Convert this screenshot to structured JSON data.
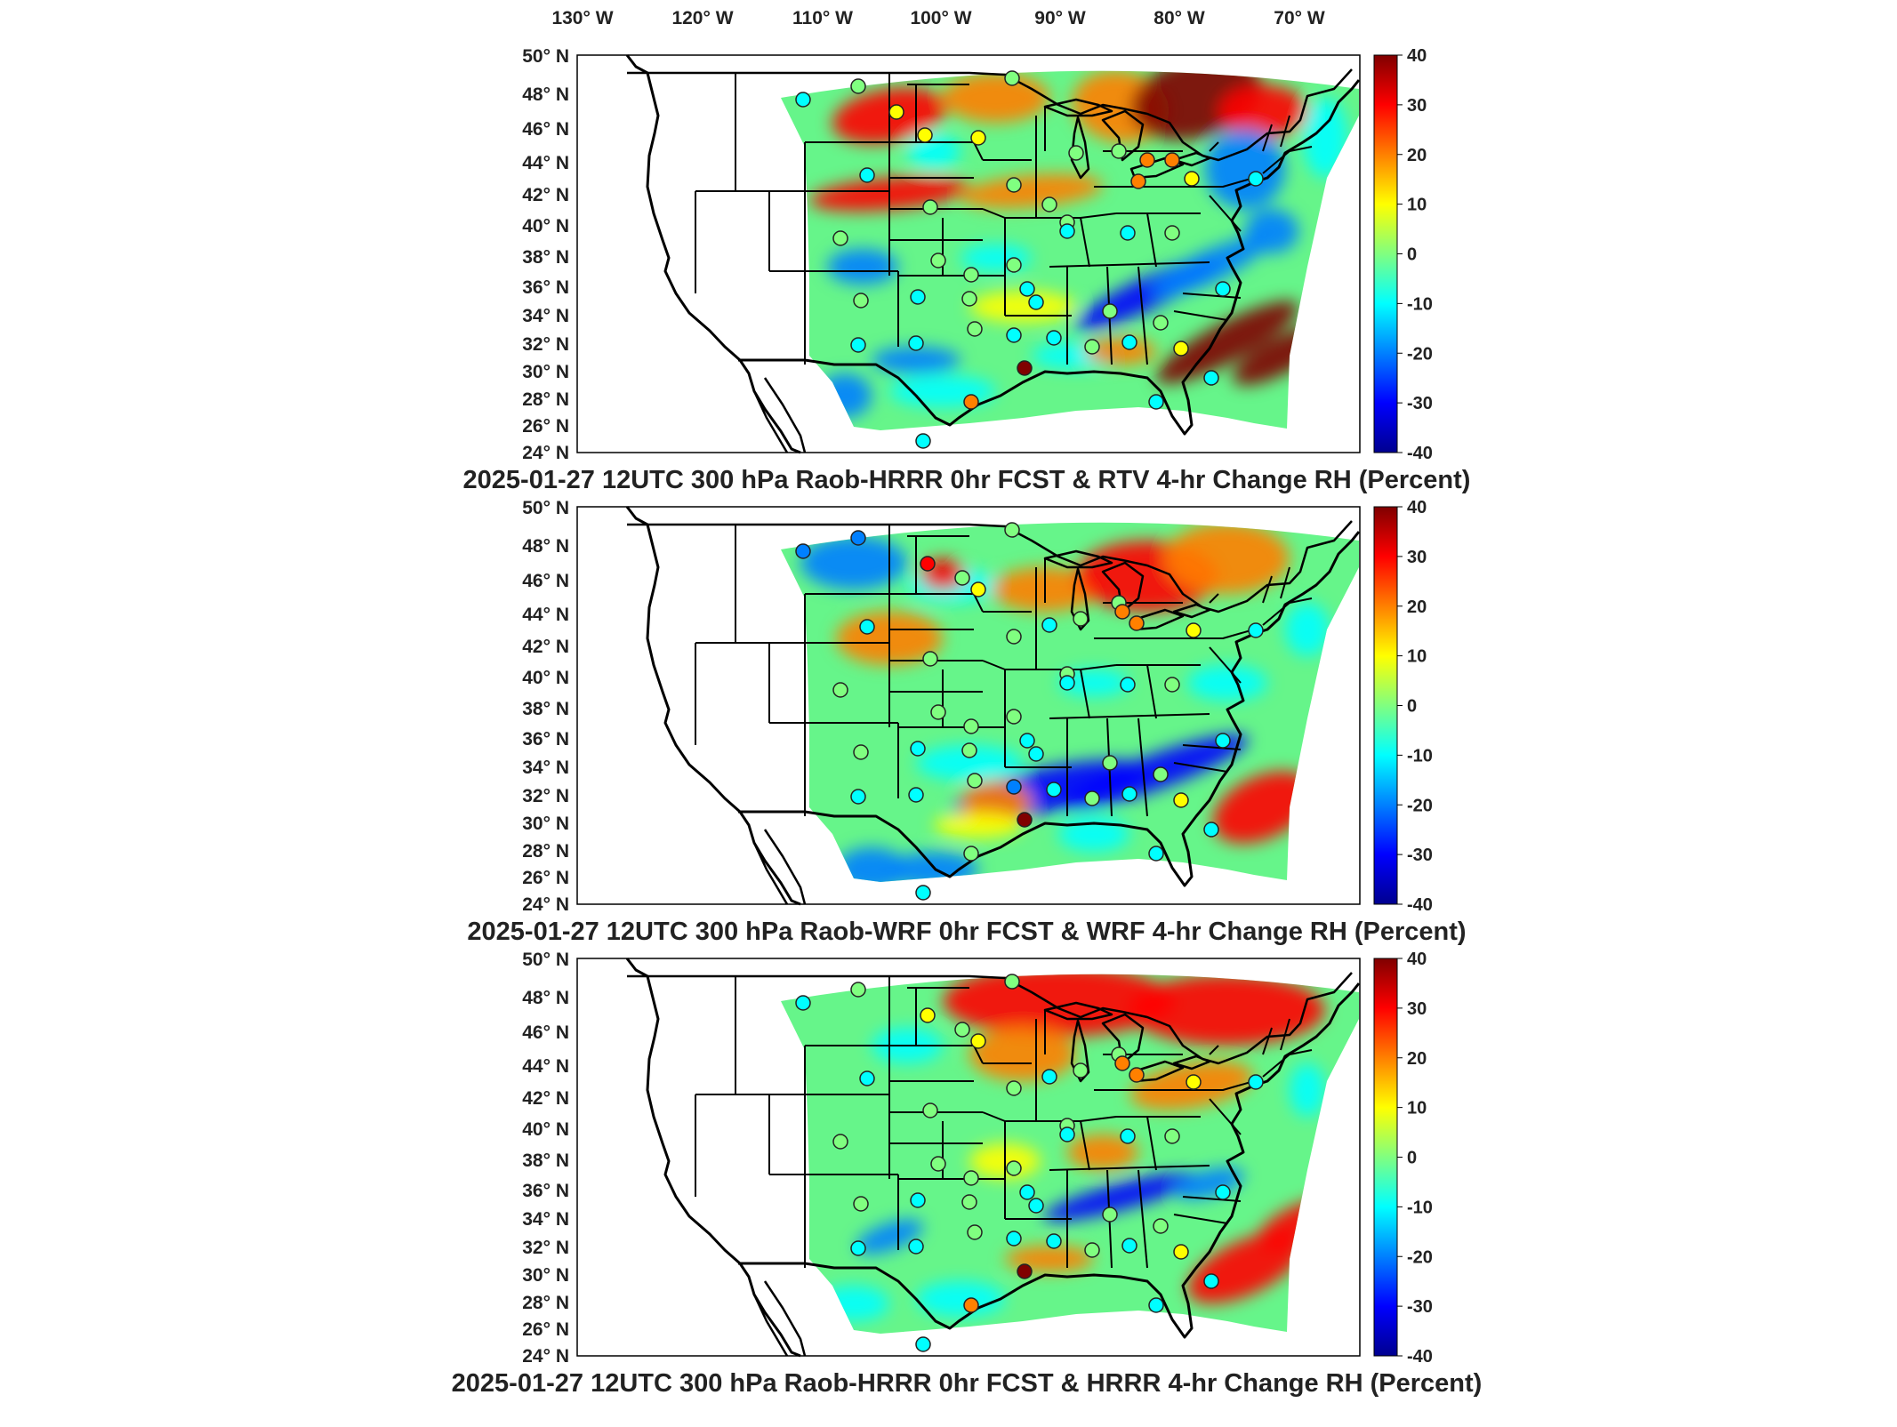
{
  "figure": {
    "longitude_labels": [
      "130° W",
      "120° W",
      "110° W",
      "100° W",
      "90° W",
      "80° W",
      "70° W"
    ],
    "latitude_labels": [
      "50° N",
      "48° N",
      "46° N",
      "44° N",
      "42° N",
      "40° N",
      "38° N",
      "36° N",
      "34° N",
      "32° N",
      "30° N",
      "28° N",
      "26° N",
      "24° N"
    ],
    "colorbar": {
      "ticks": [
        "40",
        "30",
        "20",
        "10",
        "0",
        "-10",
        "-20",
        "-30",
        "-40"
      ],
      "range": [
        -40,
        40
      ],
      "colors": [
        "#00008f",
        "#0000ff",
        "#0080ff",
        "#00ffff",
        "#80ff80",
        "#ffff00",
        "#ff8000",
        "#ff0000",
        "#800000"
      ]
    },
    "panels": [
      {
        "title": "2025-01-27 12UTC 300 hPa Raob-HRRR 0hr FCST & RTV 4-hr Change RH (Percent)",
        "pattern": 0
      },
      {
        "title": "2025-01-27 12UTC 300 hPa Raob-WRF 0hr FCST & WRF 4-hr Change RH (Percent)",
        "pattern": 1
      },
      {
        "title": "2025-01-27 12UTC 300 hPa Raob-HRRR 0hr FCST & HRRR 4-hr Change RH (Percent)",
        "pattern": 2
      }
    ]
  }
}
